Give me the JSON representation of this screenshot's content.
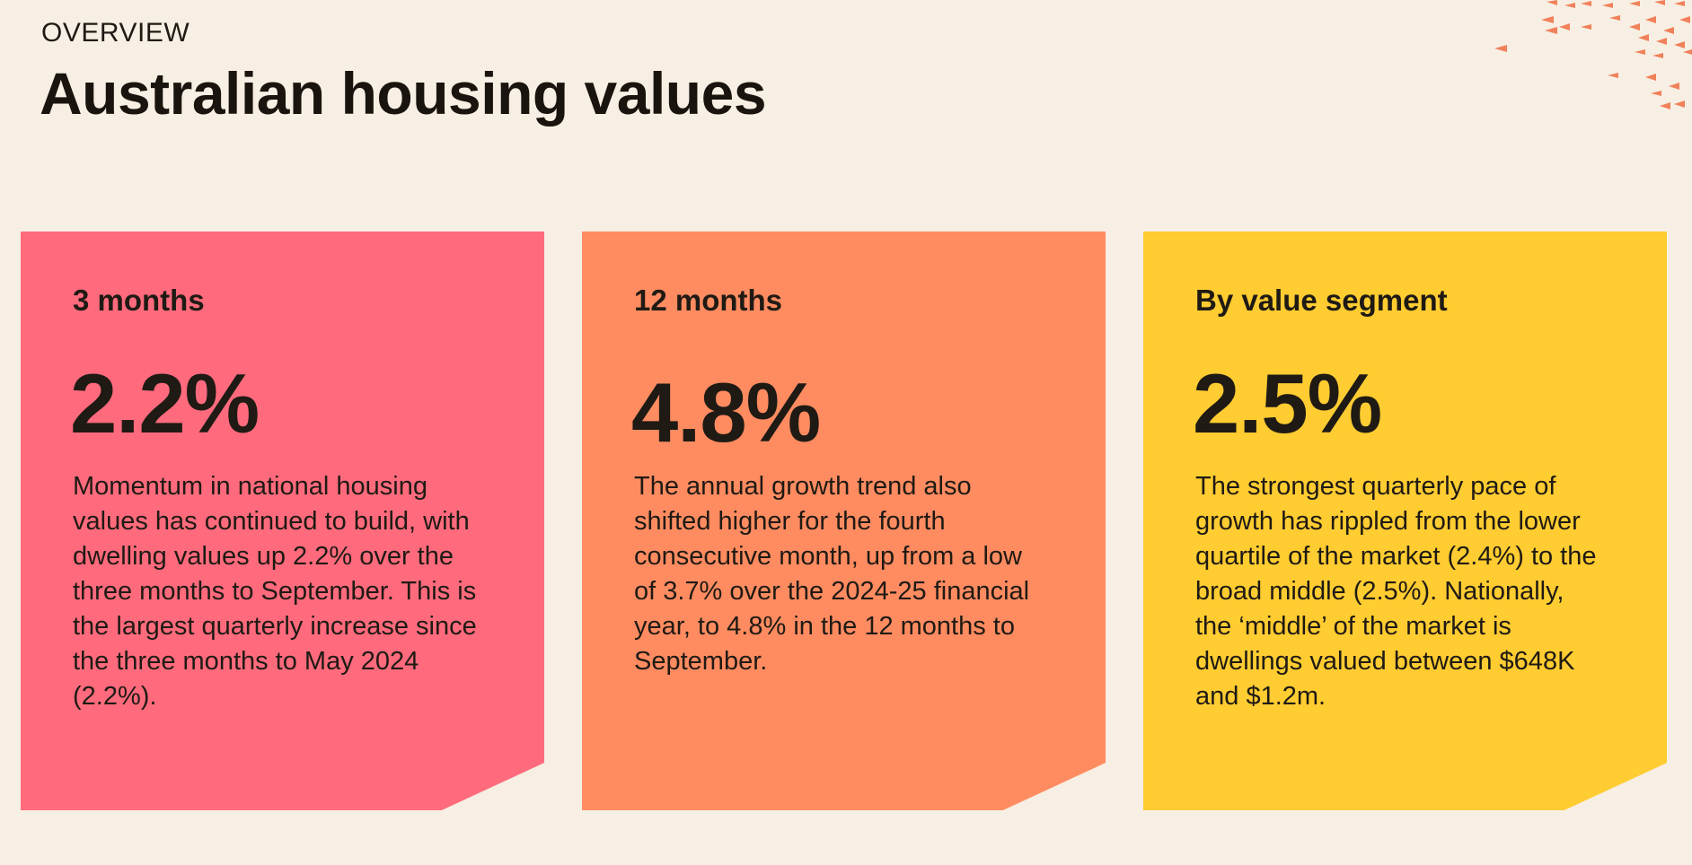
{
  "header": {
    "eyebrow": "OVERVIEW",
    "title": "Australian housing values"
  },
  "cards": [
    {
      "label": "3 months",
      "value": "2.2%",
      "description": "Momentum in national housing values has continued to build, with dwelling values up 2.2% over the three months to September. This is the largest quarterly increase since the three months to May 2024 (2.2%).",
      "color": "#ff6b7d"
    },
    {
      "label": "12 months",
      "value": "4.8%",
      "description": "The annual growth trend also shifted higher for the fourth consecutive month, up from a low of 3.7% over the 2024-25 financial year, to 4.8% in the 12 months to September.",
      "color": "#ff8c61"
    },
    {
      "label": "By value segment",
      "value": "2.5%",
      "description": "The strongest quarterly pace of growth has rippled from the lower quartile of the market (2.4%) to the broad middle (2.5%). Nationally, the ‘middle’ of the market is dwellings valued between $648K and $1.2m.",
      "color": "#ffcc31"
    }
  ],
  "decoration": {
    "icon": "arrow-swarm-decoration-icon",
    "color": "#f0815a"
  }
}
